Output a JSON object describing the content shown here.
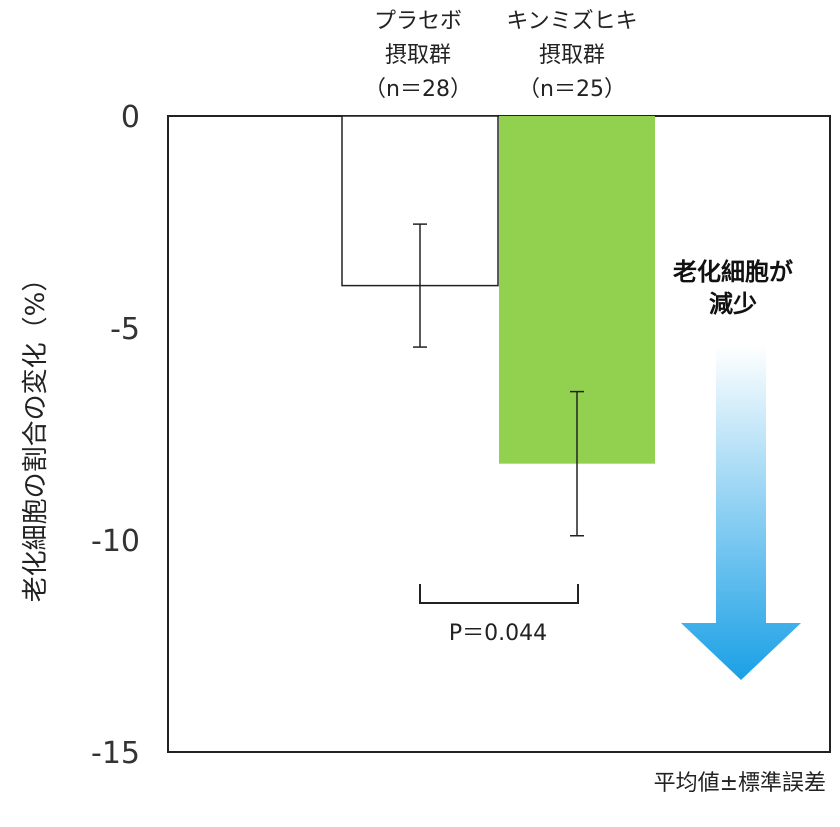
{
  "chart_data": {
    "type": "bar",
    "categories": [
      {
        "lines": [
          "プラセボ",
          "摂取群",
          "（n＝28）"
        ]
      },
      {
        "lines": [
          "キンミズヒキ",
          "摂取群",
          "（n＝25）"
        ]
      }
    ],
    "series": [
      {
        "values": [
          -4.0,
          -8.2
        ],
        "errors": [
          1.45,
          1.7
        ],
        "colors": [
          "#ffffff",
          "#92d050"
        ]
      }
    ],
    "ylabel": "老化細胞の割合の変化（%）",
    "ylim": [
      -15,
      0
    ],
    "yticks": [
      0,
      -5,
      -10,
      -15
    ],
    "ytick_labels": [
      "0",
      "-5",
      "-10",
      "-15"
    ],
    "grid": false,
    "annotation_pvalue": "P＝0.044",
    "callout": {
      "lines": [
        "老化細胞が",
        "減少"
      ],
      "arrow_colors": [
        "#ffffff",
        "#1aa0e6"
      ]
    },
    "footnote": "平均値±標準誤差"
  }
}
